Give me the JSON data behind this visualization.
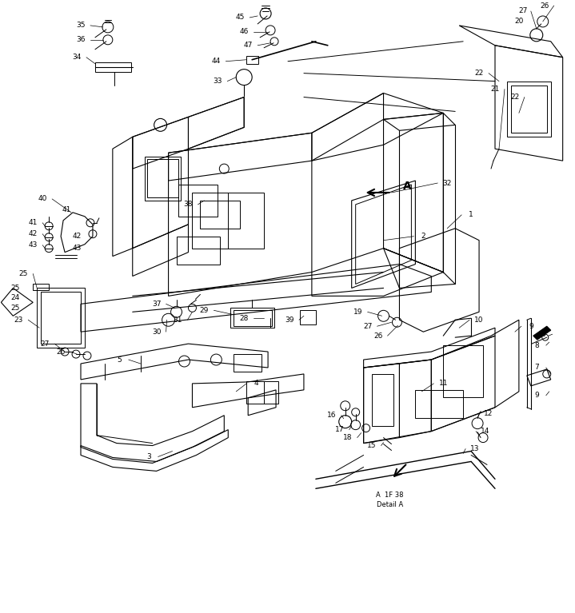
{
  "bg_color": "#ffffff",
  "line_color": "#000000",
  "fig_width": 7.19,
  "fig_height": 7.67,
  "dpi": 100,
  "detail_a_label": "A  1F 38\nDetail A"
}
